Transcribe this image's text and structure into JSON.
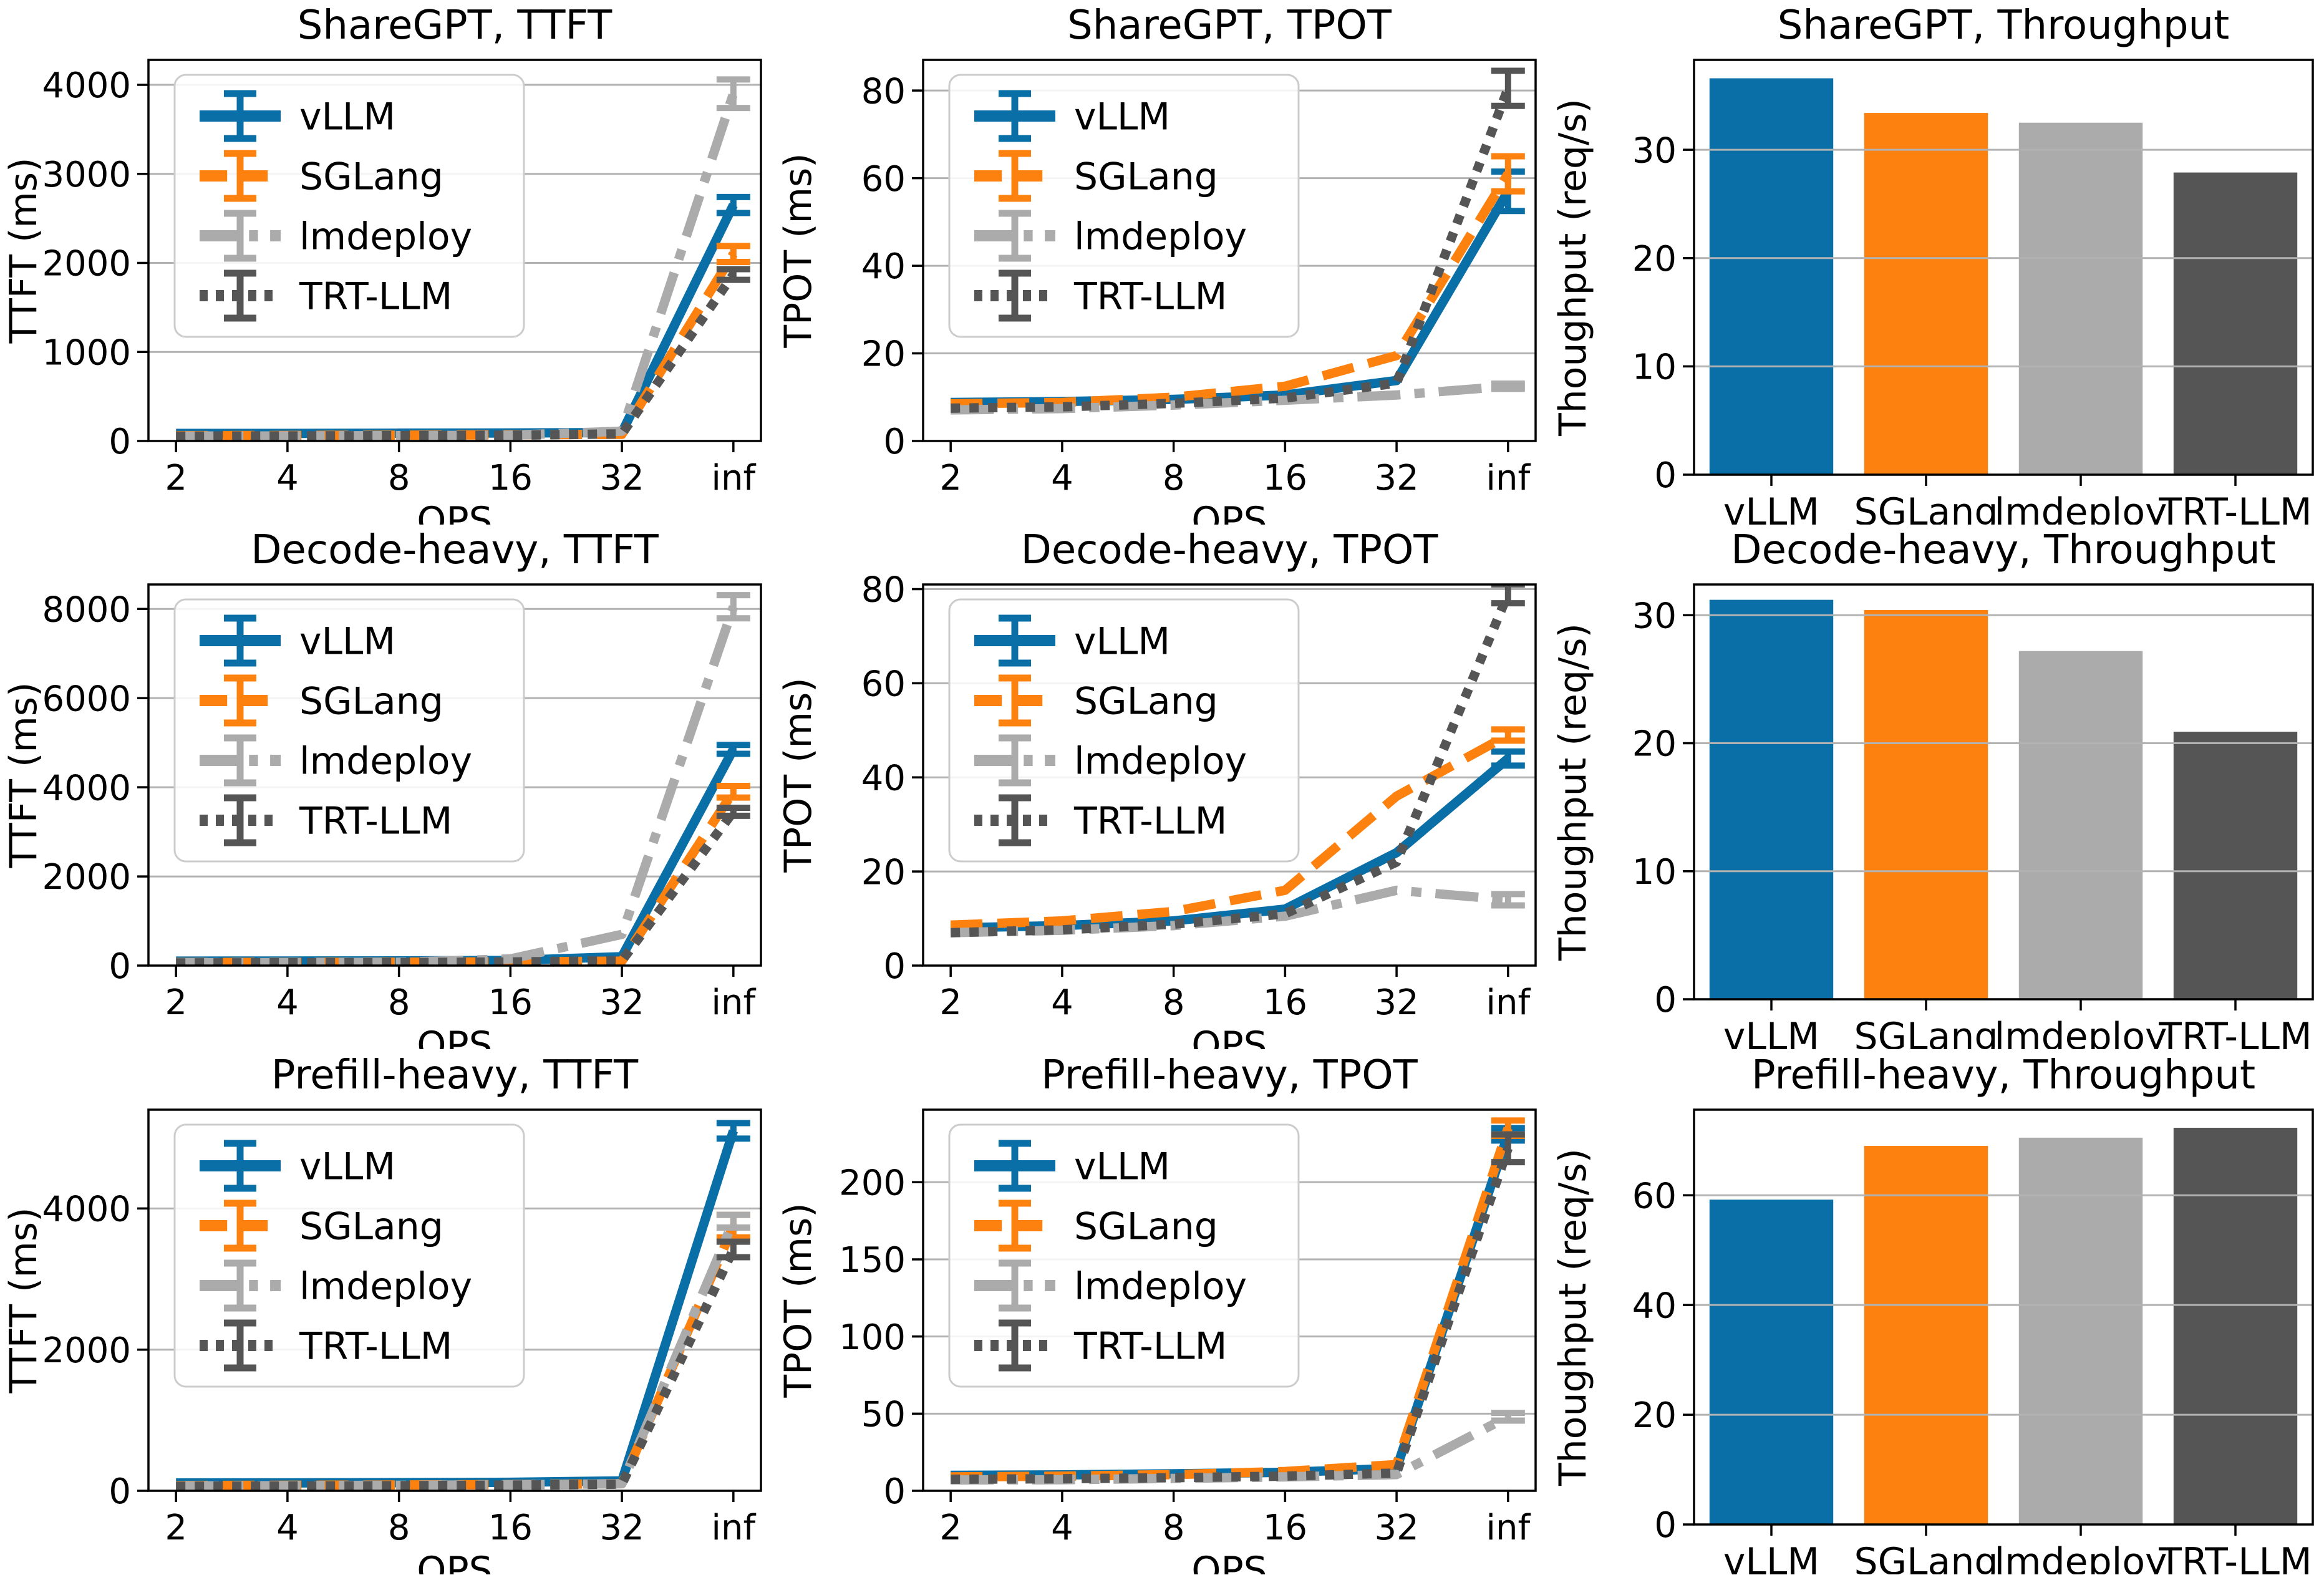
{
  "figure": {
    "background": "#ffffff"
  },
  "colors": {
    "vllm": "#0a6fa6",
    "sglang": "#fd810e",
    "lmdeploy": "#ababab",
    "trtllm": "#555555",
    "grid": "#b2b2b2",
    "axis": "#000000",
    "legend_border": "#cccccc",
    "legend_bg": "#ffffff"
  },
  "legend": {
    "entries": [
      "vLLM",
      "SGLang",
      "lmdeploy",
      "TRT-LLM"
    ]
  },
  "chart_data": [
    {
      "id": "sharegpt-ttft",
      "type": "line",
      "title": "ShareGPT, TTFT",
      "xlabel": "QPS",
      "ylabel": "TTFT (ms)",
      "x": [
        "2",
        "4",
        "8",
        "16",
        "32",
        "inf"
      ],
      "yticks": [
        0,
        1000,
        2000,
        3000,
        4000
      ],
      "ylim": [
        0,
        4280
      ],
      "grid": true,
      "legend_position": "upper-left",
      "series": [
        {
          "name": "vLLM",
          "color_key": "vllm",
          "style": "solid",
          "values": [
            85,
            85,
            88,
            90,
            95,
            2650
          ],
          "errors": [
            0,
            0,
            0,
            0,
            0,
            90
          ]
        },
        {
          "name": "SGLang",
          "color_key": "sglang",
          "style": "dashed",
          "values": [
            60,
            62,
            65,
            70,
            75,
            2100
          ],
          "errors": [
            0,
            0,
            0,
            0,
            0,
            90
          ]
        },
        {
          "name": "lmdeploy",
          "color_key": "lmdeploy",
          "style": "dashdot",
          "values": [
            55,
            57,
            60,
            65,
            110,
            3900
          ],
          "errors": [
            0,
            0,
            0,
            0,
            0,
            160
          ]
        },
        {
          "name": "TRT-LLM",
          "color_key": "trtllm",
          "style": "dotted",
          "values": [
            55,
            57,
            60,
            65,
            80,
            1870
          ],
          "errors": [
            0,
            0,
            0,
            0,
            0,
            60
          ]
        }
      ]
    },
    {
      "id": "sharegpt-tpot",
      "type": "line",
      "title": "ShareGPT, TPOT",
      "xlabel": "QPS",
      "ylabel": "TPOT (ms)",
      "x": [
        "2",
        "4",
        "8",
        "16",
        "32",
        "inf"
      ],
      "yticks": [
        0,
        20,
        40,
        60,
        80
      ],
      "ylim": [
        0,
        87
      ],
      "grid": true,
      "legend_position": "upper-left",
      "series": [
        {
          "name": "vLLM",
          "color_key": "vllm",
          "style": "solid",
          "values": [
            8.8,
            9.0,
            9.5,
            10.5,
            13.8,
            57
          ],
          "errors": [
            0,
            0,
            0,
            0,
            0,
            4.5
          ]
        },
        {
          "name": "SGLang",
          "color_key": "sglang",
          "style": "dashed",
          "values": [
            8.5,
            8.8,
            10.0,
            12.5,
            19.5,
            61
          ],
          "errors": [
            0,
            0,
            0,
            0,
            0,
            4
          ]
        },
        {
          "name": "lmdeploy",
          "color_key": "lmdeploy",
          "style": "dashdot",
          "values": [
            7.1,
            7.4,
            8.2,
            9.3,
            10.5,
            12.5
          ],
          "errors": [
            0,
            0,
            0,
            0,
            0,
            0.6
          ]
        },
        {
          "name": "TRT-LLM",
          "color_key": "trtllm",
          "style": "dotted",
          "values": [
            7.5,
            7.8,
            8.6,
            9.8,
            13.2,
            80.5
          ],
          "errors": [
            0,
            0,
            0,
            0,
            0,
            4
          ]
        }
      ]
    },
    {
      "id": "sharegpt-throughput",
      "type": "bar",
      "title": "ShareGPT, Throughput",
      "xlabel": "",
      "ylabel": "Thoughput (req/s)",
      "categories": [
        "vLLM",
        "SGLang",
        "lmdeploy",
        "TRT-LLM"
      ],
      "values": [
        36.6,
        33.4,
        32.5,
        27.9
      ],
      "color_keys": [
        "vllm",
        "sglang",
        "lmdeploy",
        "trtllm"
      ],
      "yticks": [
        0,
        10,
        20,
        30
      ],
      "ylim": [
        0,
        38.3
      ],
      "grid": true
    },
    {
      "id": "decode-heavy-ttft",
      "type": "line",
      "title": "Decode-heavy, TTFT",
      "xlabel": "QPS",
      "ylabel": "TTFT (ms)",
      "x": [
        "2",
        "4",
        "8",
        "16",
        "32",
        "inf"
      ],
      "yticks": [
        0,
        2000,
        4000,
        6000,
        8000
      ],
      "ylim": [
        0,
        8550
      ],
      "grid": true,
      "legend_position": "upper-left",
      "series": [
        {
          "name": "vLLM",
          "color_key": "vllm",
          "style": "solid",
          "values": [
            100,
            102,
            105,
            115,
            200,
            4850
          ],
          "errors": [
            0,
            0,
            0,
            0,
            0,
            100
          ]
        },
        {
          "name": "SGLang",
          "color_key": "sglang",
          "style": "dashed",
          "values": [
            70,
            72,
            76,
            82,
            100,
            3900
          ],
          "errors": [
            0,
            0,
            0,
            0,
            0,
            130
          ]
        },
        {
          "name": "lmdeploy",
          "color_key": "lmdeploy",
          "style": "dashdot",
          "values": [
            65,
            68,
            75,
            150,
            700,
            8050
          ],
          "errors": [
            0,
            0,
            0,
            0,
            0,
            260
          ]
        },
        {
          "name": "TRT-LLM",
          "color_key": "trtllm",
          "style": "dotted",
          "values": [
            60,
            63,
            68,
            80,
            110,
            3450
          ],
          "errors": [
            0,
            0,
            0,
            0,
            0,
            90
          ]
        }
      ]
    },
    {
      "id": "decode-heavy-tpot",
      "type": "line",
      "title": "Decode-heavy, TPOT",
      "xlabel": "QPS",
      "ylabel": "TPOT (ms)",
      "x": [
        "2",
        "4",
        "8",
        "16",
        "32",
        "inf"
      ],
      "yticks": [
        0,
        20,
        40,
        60,
        80
      ],
      "ylim": [
        0,
        81
      ],
      "grid": true,
      "legend_position": "upper-left",
      "series": [
        {
          "name": "vLLM",
          "color_key": "vllm",
          "style": "solid",
          "values": [
            8.0,
            8.5,
            9.5,
            12.0,
            24,
            44
          ],
          "errors": [
            0,
            0,
            0,
            0,
            0,
            1.5
          ]
        },
        {
          "name": "SGLang",
          "color_key": "sglang",
          "style": "dashed",
          "values": [
            8.6,
            9.5,
            11.5,
            16.0,
            36,
            49
          ],
          "errors": [
            0,
            0,
            0,
            0,
            0,
            1.2
          ]
        },
        {
          "name": "lmdeploy",
          "color_key": "lmdeploy",
          "style": "dashdot",
          "values": [
            7.0,
            7.5,
            8.5,
            10.5,
            16,
            14
          ],
          "errors": [
            0,
            0,
            0,
            0,
            0,
            1.2
          ]
        },
        {
          "name": "TRT-LLM",
          "color_key": "trtllm",
          "style": "dotted",
          "values": [
            7.0,
            7.6,
            8.8,
            11.0,
            22,
            79
          ],
          "errors": [
            0,
            0,
            0,
            0,
            0,
            2
          ]
        }
      ]
    },
    {
      "id": "decode-heavy-throughput",
      "type": "bar",
      "title": "Decode-heavy, Throughput",
      "xlabel": "",
      "ylabel": "Thoughput (req/s)",
      "categories": [
        "vLLM",
        "SGLang",
        "lmdeploy",
        "TRT-LLM"
      ],
      "values": [
        31.2,
        30.4,
        27.2,
        20.9
      ],
      "color_keys": [
        "vllm",
        "sglang",
        "lmdeploy",
        "trtllm"
      ],
      "yticks": [
        0,
        10,
        20,
        30
      ],
      "ylim": [
        0,
        32.4
      ],
      "grid": true
    },
    {
      "id": "prefill-heavy-ttft",
      "type": "line",
      "title": "Prefill-heavy, TTFT",
      "xlabel": "QPS",
      "ylabel": "TTFT (ms)",
      "x": [
        "2",
        "4",
        "8",
        "16",
        "32",
        "inf"
      ],
      "yticks": [
        0,
        2000,
        4000
      ],
      "ylim": [
        0,
        5400
      ],
      "grid": true,
      "legend_position": "upper-left",
      "series": [
        {
          "name": "vLLM",
          "color_key": "vllm",
          "style": "solid",
          "values": [
            110,
            112,
            115,
            120,
            140,
            5100
          ],
          "errors": [
            0,
            0,
            0,
            0,
            0,
            110
          ]
        },
        {
          "name": "SGLang",
          "color_key": "sglang",
          "style": "dashed",
          "values": [
            75,
            78,
            82,
            88,
            100,
            3750
          ],
          "errors": [
            0,
            0,
            0,
            0,
            0,
            160
          ]
        },
        {
          "name": "lmdeploy",
          "color_key": "lmdeploy",
          "style": "dashdot",
          "values": [
            70,
            73,
            78,
            85,
            100,
            3820
          ],
          "errors": [
            0,
            0,
            0,
            0,
            0,
            90
          ]
        },
        {
          "name": "TRT-LLM",
          "color_key": "trtllm",
          "style": "dotted",
          "values": [
            65,
            68,
            72,
            80,
            95,
            3420
          ],
          "errors": [
            0,
            0,
            0,
            0,
            0,
            110
          ]
        }
      ]
    },
    {
      "id": "prefill-heavy-tpot",
      "type": "line",
      "title": "Prefill-heavy, TPOT",
      "xlabel": "QPS",
      "ylabel": "TPOT (ms)",
      "x": [
        "2",
        "4",
        "8",
        "16",
        "32",
        "inf"
      ],
      "yticks": [
        0,
        50,
        100,
        150,
        200
      ],
      "ylim": [
        0,
        247
      ],
      "grid": true,
      "legend_position": "upper-left",
      "series": [
        {
          "name": "vLLM",
          "color_key": "vllm",
          "style": "solid",
          "values": [
            10,
            10.3,
            11,
            12,
            14.5,
            231
          ],
          "errors": [
            0,
            0,
            0,
            0,
            0,
            4
          ]
        },
        {
          "name": "SGLang",
          "color_key": "sglang",
          "style": "dashed",
          "values": [
            9,
            9.5,
            10.5,
            12.5,
            17,
            235
          ],
          "errors": [
            0,
            0,
            0,
            0,
            0,
            5
          ]
        },
        {
          "name": "lmdeploy",
          "color_key": "lmdeploy",
          "style": "dashdot",
          "values": [
            7,
            7.2,
            8,
            9,
            10.5,
            48
          ],
          "errors": [
            0,
            0,
            0,
            0,
            0,
            2.5
          ]
        },
        {
          "name": "TRT-LLM",
          "color_key": "trtllm",
          "style": "dotted",
          "values": [
            7.5,
            7.8,
            8.5,
            9.5,
            11.5,
            222
          ],
          "errors": [
            0,
            0,
            0,
            0,
            0,
            9
          ]
        }
      ]
    },
    {
      "id": "prefill-heavy-throughput",
      "type": "bar",
      "title": "Prefill-heavy, Throughput",
      "xlabel": "",
      "ylabel": "Thoughput (req/s)",
      "categories": [
        "vLLM",
        "SGLang",
        "lmdeploy",
        "TRT-LLM"
      ],
      "values": [
        59.2,
        69.0,
        70.5,
        72.3
      ],
      "color_keys": [
        "vllm",
        "sglang",
        "lmdeploy",
        "trtllm"
      ],
      "yticks": [
        0,
        20,
        40,
        60
      ],
      "ylim": [
        0,
        75.6
      ],
      "grid": true
    }
  ]
}
